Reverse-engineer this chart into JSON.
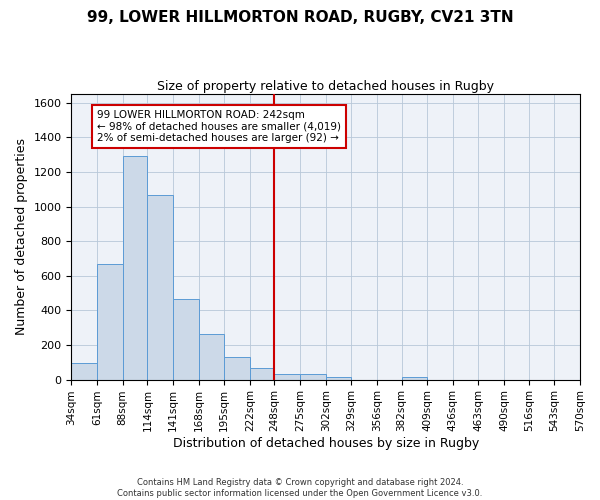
{
  "title1": "99, LOWER HILLMORTON ROAD, RUGBY, CV21 3TN",
  "title2": "Size of property relative to detached houses in Rugby",
  "xlabel": "Distribution of detached houses by size in Rugby",
  "ylabel": "Number of detached properties",
  "bar_color": "#ccd9e8",
  "bar_edge_color": "#5b9bd5",
  "grid_color": "#b8c8d8",
  "bg_color": "#eef2f8",
  "vline_color": "#cc0000",
  "vline_x": 248,
  "bin_edges": [
    34,
    61,
    88,
    114,
    141,
    168,
    195,
    222,
    248,
    275,
    302,
    329,
    356,
    382,
    409,
    436,
    463,
    490,
    516,
    543,
    570
  ],
  "bar_heights": [
    97,
    670,
    1290,
    1065,
    468,
    265,
    128,
    68,
    30,
    35,
    15,
    0,
    0,
    13,
    0,
    0,
    0,
    0,
    0,
    0
  ],
  "annotation_line1": "99 LOWER HILLMORTON ROAD: 242sqm",
  "annotation_line2": "← 98% of detached houses are smaller (4,019)",
  "annotation_line3": "2% of semi-detached houses are larger (92) →",
  "annotation_box_color": "#ffffff",
  "annotation_box_edge": "#cc0000",
  "footnote": "Contains HM Land Registry data © Crown copyright and database right 2024.\nContains public sector information licensed under the Open Government Licence v3.0.",
  "ylim": [
    0,
    1650
  ],
  "yticks": [
    0,
    200,
    400,
    600,
    800,
    1000,
    1200,
    1400,
    1600
  ]
}
